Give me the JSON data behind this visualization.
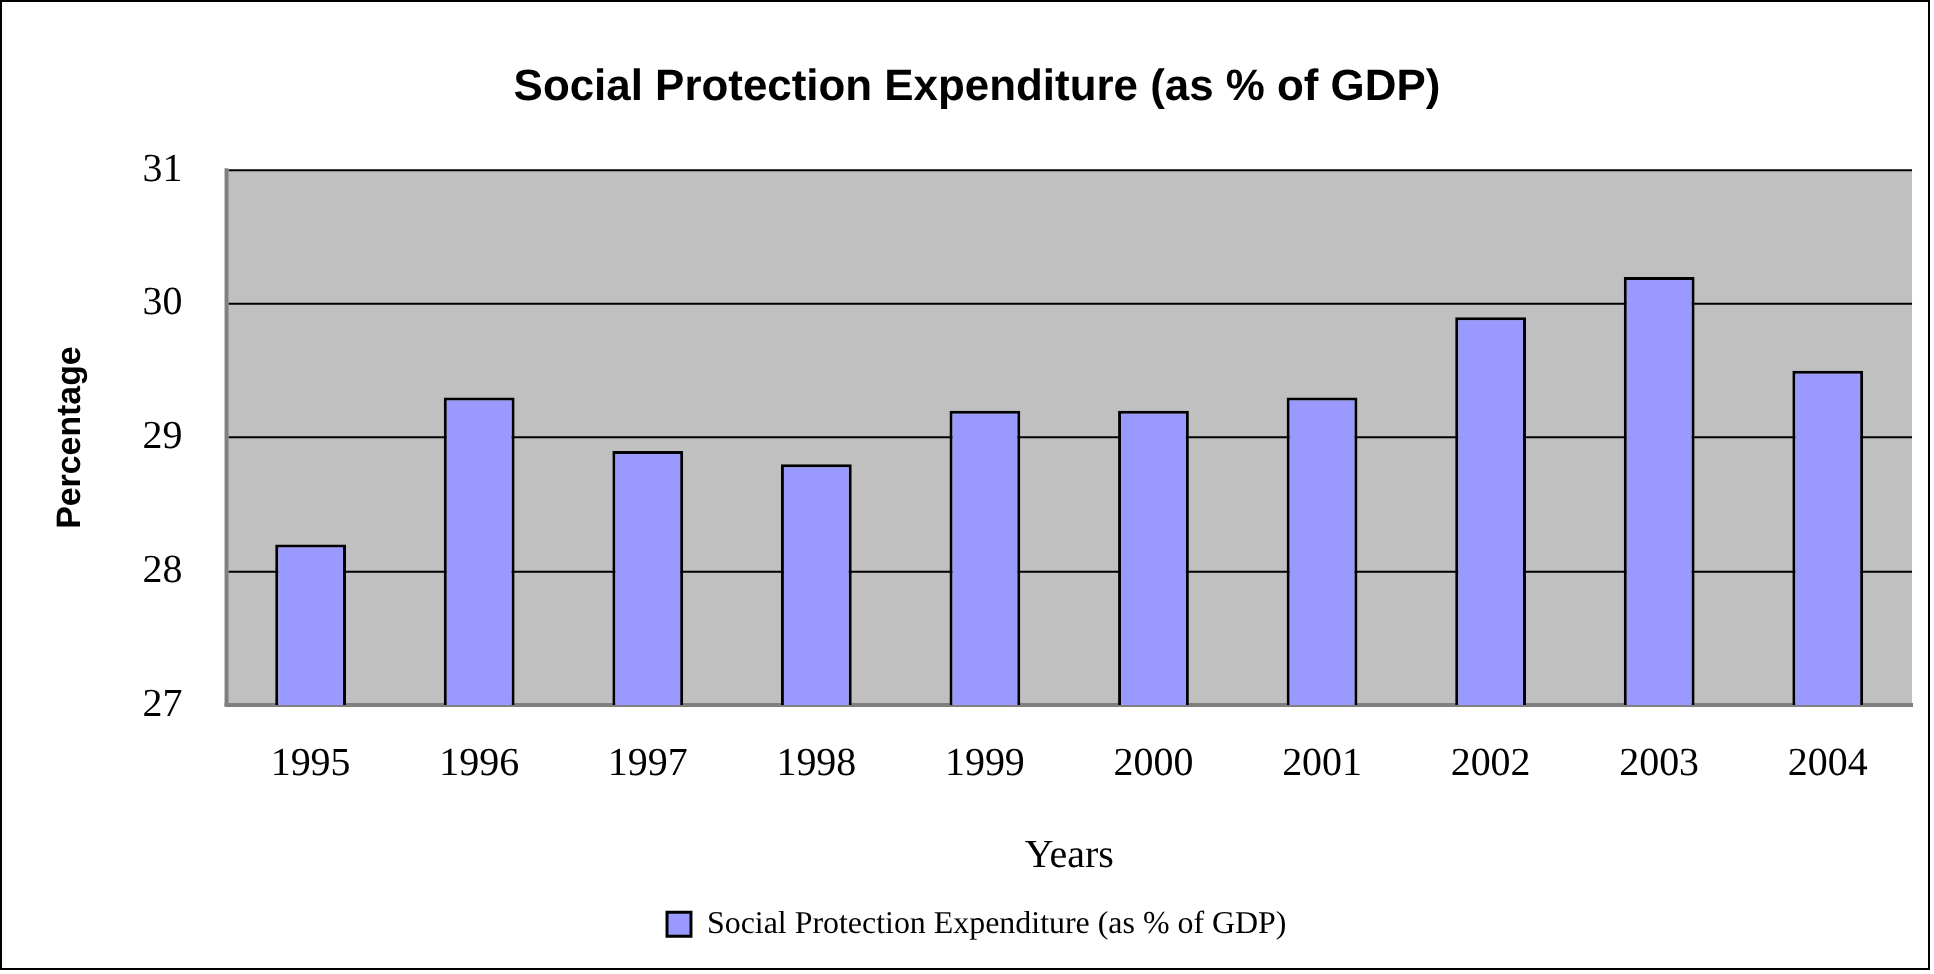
{
  "chart_data": {
    "type": "bar",
    "title": "Social Protection Expenditure (as % of GDP)",
    "xlabel": "Years",
    "ylabel": "Percentage",
    "categories": [
      "1995",
      "1996",
      "1997",
      "1998",
      "1999",
      "2000",
      "2001",
      "2002",
      "2003",
      "2004"
    ],
    "series": [
      {
        "name": "Social Protection Expenditure (as % of GDP)",
        "color": "#9999ff",
        "values": [
          28.2,
          29.3,
          28.9,
          28.8,
          29.2,
          29.2,
          29.3,
          29.9,
          30.2,
          29.5
        ]
      }
    ],
    "ylim": [
      27,
      31
    ],
    "yticks": [
      27,
      28,
      29,
      30,
      31
    ],
    "grid": "y",
    "legend": "bottom"
  }
}
